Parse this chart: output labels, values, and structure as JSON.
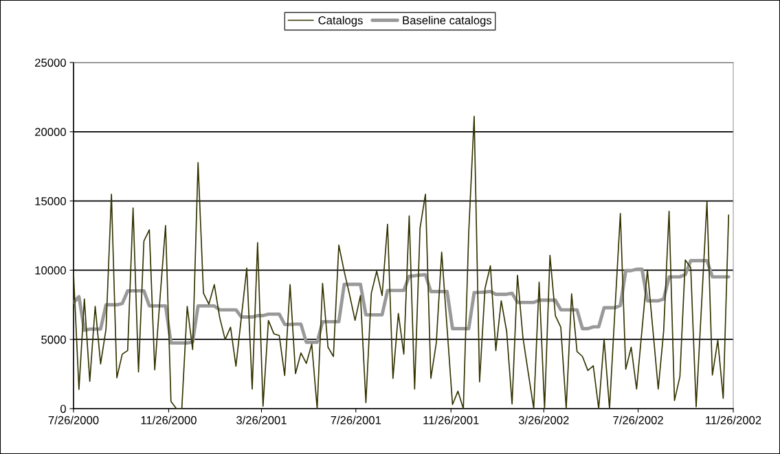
{
  "chart_data": {
    "type": "line",
    "x": [
      "2000-07-26",
      "2000-08-02",
      "2000-08-09",
      "2000-08-16",
      "2000-08-23",
      "2000-08-30",
      "2000-09-06",
      "2000-09-13",
      "2000-09-20",
      "2000-09-27",
      "2000-10-04",
      "2000-10-11",
      "2000-10-18",
      "2000-10-25",
      "2000-11-01",
      "2000-11-08",
      "2000-11-15",
      "2000-11-22",
      "2000-11-29",
      "2000-12-06",
      "2000-12-13",
      "2000-12-20",
      "2000-12-27",
      "2001-01-03",
      "2001-01-10",
      "2001-01-17",
      "2001-01-24",
      "2001-01-31",
      "2001-02-07",
      "2001-02-14",
      "2001-02-21",
      "2001-02-28",
      "2001-03-07",
      "2001-03-14",
      "2001-03-21",
      "2001-03-28",
      "2001-04-04",
      "2001-04-11",
      "2001-04-18",
      "2001-04-25",
      "2001-05-02",
      "2001-05-09",
      "2001-05-16",
      "2001-05-23",
      "2001-05-30",
      "2001-06-06",
      "2001-06-13",
      "2001-06-20",
      "2001-06-27",
      "2001-07-04",
      "2001-07-11",
      "2001-07-18",
      "2001-07-25",
      "2001-08-01",
      "2001-08-08",
      "2001-08-15",
      "2001-08-22",
      "2001-08-29",
      "2001-09-05",
      "2001-09-12",
      "2001-09-19",
      "2001-09-26",
      "2001-10-03",
      "2001-10-10",
      "2001-10-17",
      "2001-10-24",
      "2001-10-31",
      "2001-11-07",
      "2001-11-14",
      "2001-11-21",
      "2001-11-28",
      "2001-12-05",
      "2001-12-12",
      "2001-12-19",
      "2001-12-26",
      "2002-01-02",
      "2002-01-09",
      "2002-01-16",
      "2002-01-23",
      "2002-01-30",
      "2002-02-06",
      "2002-02-13",
      "2002-02-20",
      "2002-02-27",
      "2002-03-06",
      "2002-03-13",
      "2002-03-20",
      "2002-03-27",
      "2002-04-03",
      "2002-04-10",
      "2002-04-17",
      "2002-04-24",
      "2002-05-01",
      "2002-05-08",
      "2002-05-15",
      "2002-05-22",
      "2002-05-29",
      "2002-06-05",
      "2002-06-12",
      "2002-06-19",
      "2002-06-26",
      "2002-07-03",
      "2002-07-10",
      "2002-07-17",
      "2002-07-24",
      "2002-07-31",
      "2002-08-07",
      "2002-08-14",
      "2002-08-21",
      "2002-08-28",
      "2002-09-04",
      "2002-09-11",
      "2002-09-18",
      "2002-09-25",
      "2002-10-02",
      "2002-10-09",
      "2002-10-16",
      "2002-10-23",
      "2002-10-30",
      "2002-11-06",
      "2002-11-13",
      "2002-11-20"
    ],
    "series": [
      {
        "name": "Catalogs",
        "color": "#333300",
        "values": [
          9770,
          1390,
          7920,
          1980,
          7390,
          3230,
          5750,
          15490,
          2230,
          3940,
          4200,
          14490,
          2650,
          12110,
          12920,
          2800,
          8100,
          13230,
          520,
          0,
          0,
          7390,
          4270,
          17770,
          8340,
          7550,
          8960,
          6580,
          4990,
          5880,
          3070,
          6600,
          10150,
          1420,
          11990,
          180,
          6370,
          5410,
          5280,
          2400,
          8960,
          2530,
          4020,
          3270,
          4660,
          0,
          9050,
          4440,
          3770,
          11810,
          9900,
          8200,
          6380,
          8170,
          440,
          8340,
          9930,
          8170,
          13320,
          2190,
          6880,
          3940,
          13920,
          1420,
          13030,
          15490,
          2190,
          4740,
          11310,
          5810,
          300,
          1260,
          0,
          12780,
          21120,
          1940,
          8680,
          10320,
          4200,
          7790,
          5580,
          340,
          9630,
          5160,
          2560,
          0,
          9130,
          0,
          11070,
          6720,
          5880,
          0,
          8290,
          4120,
          3770,
          2760,
          3100,
          0,
          5030,
          0,
          7090,
          14090,
          2850,
          4440,
          1420,
          5700,
          10000,
          5750,
          1420,
          5600,
          14260,
          590,
          2310,
          10740,
          10180,
          130,
          7500,
          14960,
          2430,
          4940,
          750,
          13990
        ]
      },
      {
        "name": "Baseline catalogs",
        "color": "#999999",
        "values": [
          7670,
          8090,
          5660,
          5750,
          5750,
          5750,
          7500,
          7500,
          7500,
          7590,
          8510,
          8510,
          8510,
          8510,
          7420,
          7420,
          7420,
          7420,
          4740,
          4740,
          4740,
          4740,
          4820,
          7420,
          7420,
          7420,
          7420,
          7140,
          7140,
          7140,
          7140,
          6620,
          6620,
          6620,
          6720,
          6720,
          6830,
          6830,
          6830,
          6080,
          6080,
          6110,
          6110,
          4790,
          4790,
          4790,
          6280,
          6280,
          6280,
          6280,
          8980,
          8980,
          8980,
          8980,
          6780,
          6780,
          6780,
          6780,
          8540,
          8540,
          8540,
          8540,
          9570,
          9600,
          9650,
          9680,
          8460,
          8460,
          8460,
          8460,
          5780,
          5780,
          5780,
          5780,
          8390,
          8400,
          8420,
          8460,
          8260,
          8260,
          8260,
          8340,
          7670,
          7670,
          7670,
          7670,
          7840,
          7840,
          7840,
          7840,
          7140,
          7140,
          7140,
          7140,
          5780,
          5780,
          5910,
          5910,
          7290,
          7290,
          7290,
          7450,
          9970,
          9970,
          10070,
          10070,
          7790,
          7790,
          7790,
          7920,
          9520,
          9520,
          9520,
          9680,
          10690,
          10690,
          10690,
          10690,
          9520,
          9520,
          9520,
          9520
        ]
      }
    ],
    "xlim": [
      "2000-07-26",
      "2002-11-26"
    ],
    "xticks": [
      {
        "value": "2000-07-26",
        "label": "7/26/2000"
      },
      {
        "value": "2000-11-26",
        "label": "11/26/2000"
      },
      {
        "value": "2001-03-26",
        "label": "3/26/2001"
      },
      {
        "value": "2001-07-26",
        "label": "7/26/2001"
      },
      {
        "value": "2001-11-26",
        "label": "11/26/2001"
      },
      {
        "value": "2002-03-26",
        "label": "3/26/2002"
      },
      {
        "value": "2002-07-26",
        "label": "7/26/2002"
      },
      {
        "value": "2002-11-26",
        "label": "11/26/2002"
      }
    ],
    "ylim": [
      0,
      25000
    ],
    "yticks": [
      0,
      5000,
      10000,
      15000,
      20000,
      25000
    ],
    "grid": "y",
    "legend": "top",
    "marker": "none",
    "line_style": "solid"
  }
}
